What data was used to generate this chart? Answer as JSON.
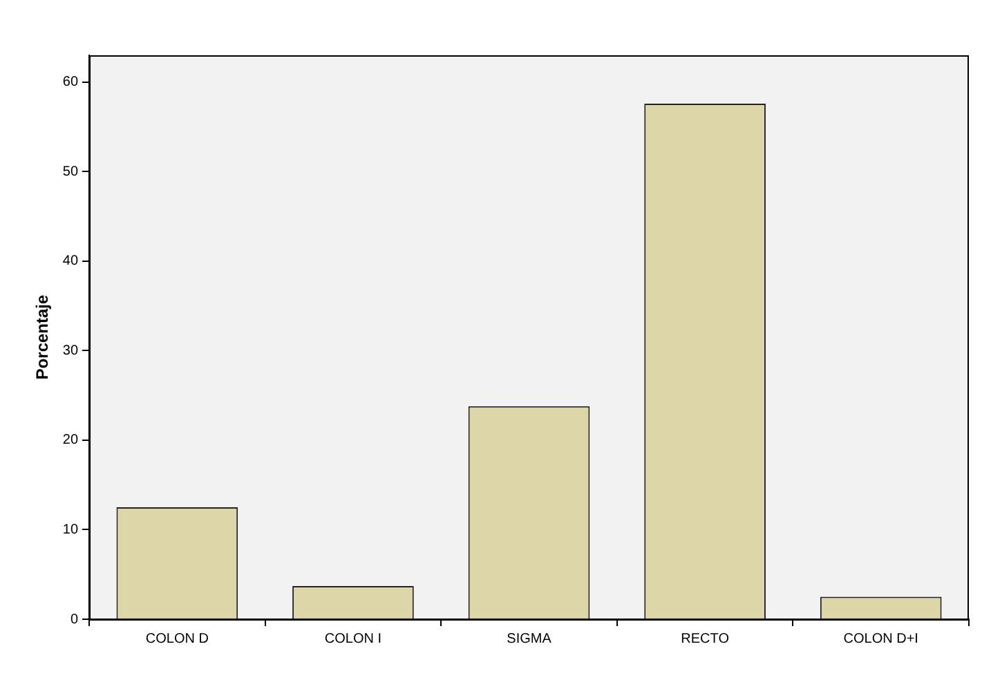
{
  "chart_data": {
    "type": "bar",
    "ylabel": "Porcentaje",
    "categories": [
      "COLON D",
      "COLON I",
      "SIGMA",
      "RECTO",
      "COLON D+I"
    ],
    "values": [
      12.5,
      3.7,
      23.8,
      57.6,
      2.5
    ],
    "color": "#dcd6a8",
    "ylim": [
      0,
      63
    ],
    "yticks": [
      0,
      10,
      20,
      30,
      40,
      50,
      60
    ],
    "grid": false,
    "legend": false
  }
}
